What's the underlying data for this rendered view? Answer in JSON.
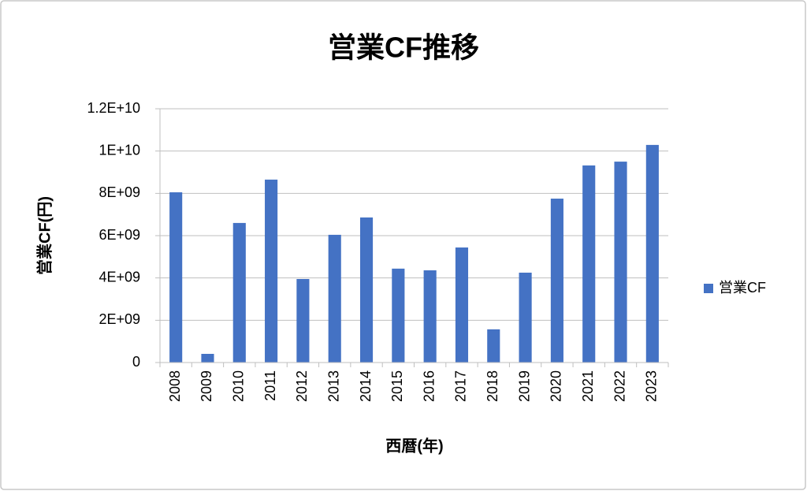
{
  "chart_data": {
    "type": "bar",
    "title": "営業CF推移",
    "x_label": "西暦(年)",
    "y_label": "営業CF(円)",
    "categories": [
      "2008",
      "2009",
      "2010",
      "2011",
      "2012",
      "2013",
      "2014",
      "2015",
      "2016",
      "2017",
      "2018",
      "2019",
      "2020",
      "2021",
      "2022",
      "2023"
    ],
    "series": [
      {
        "name": "営業CF",
        "color": "#4472c4",
        "values": [
          8050000000,
          410000000,
          6600000000,
          8650000000,
          3950000000,
          6040000000,
          6860000000,
          4440000000,
          4360000000,
          5440000000,
          1570000000,
          4250000000,
          7750000000,
          9320000000,
          9500000000,
          10290000000
        ]
      }
    ],
    "ylim": [
      0,
      12000000000
    ],
    "yticks": [
      0,
      {
        "value": 2000000000,
        "label": "2E+09"
      },
      {
        "value": 4000000000,
        "label": "4E+09"
      },
      {
        "value": 6000000000,
        "label": "6E+09"
      },
      {
        "value": 8000000000,
        "label": "8E+09"
      },
      {
        "value": 10000000000,
        "label": "1E+10"
      },
      {
        "value": 12000000000,
        "label": "1.2E+10"
      }
    ],
    "grid": true,
    "legend": "right"
  }
}
